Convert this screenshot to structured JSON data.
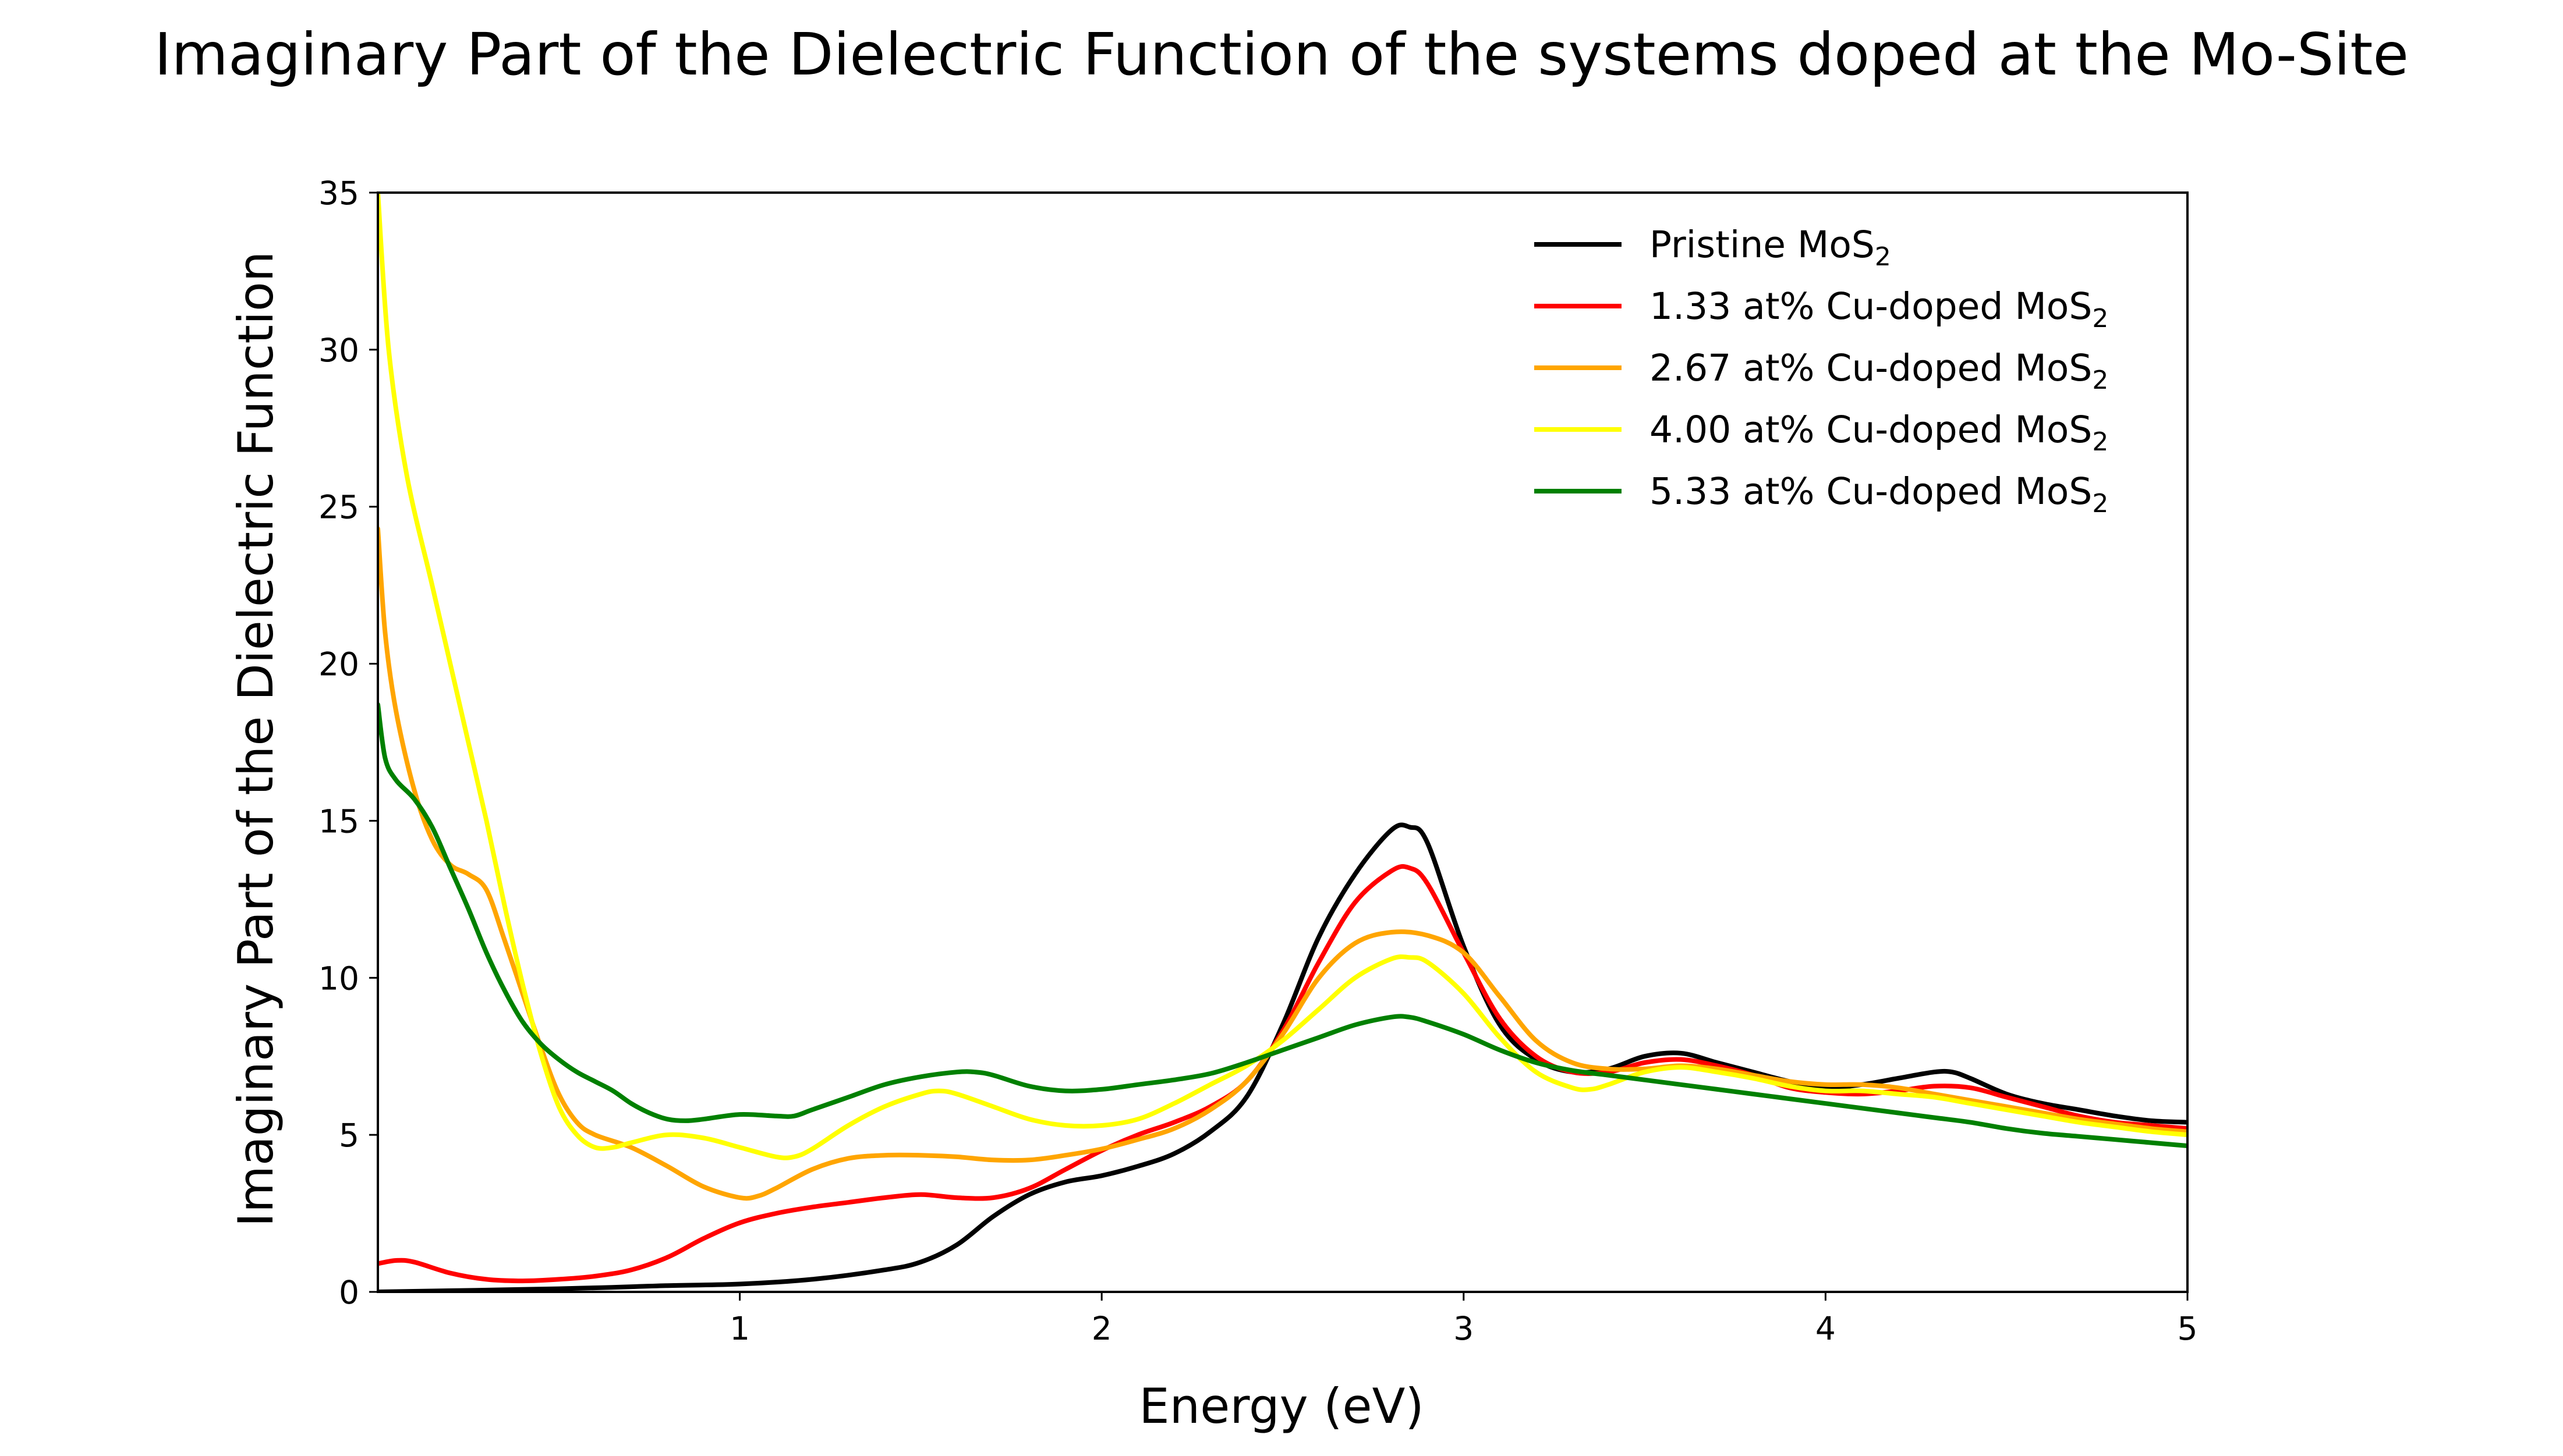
{
  "chart_data": {
    "type": "line",
    "title": "Imaginary Part of the Dielectric Function of the systems doped at the Mo-Site",
    "xlabel": "Energy (eV)",
    "ylabel": "Imaginary Part of the Dielectric Function",
    "xlim": [
      0,
      5
    ],
    "ylim": [
      0,
      35
    ],
    "xticks": [
      1,
      2,
      3,
      4,
      5
    ],
    "yticks": [
      0,
      5,
      10,
      15,
      20,
      25,
      30,
      35
    ],
    "grid": false,
    "legend_position": "top-right",
    "series": [
      {
        "name": "Pristine MoS",
        "name_subscript": "2",
        "color": "#000000",
        "points": [
          [
            0.0,
            0.0
          ],
          [
            0.5,
            0.1
          ],
          [
            0.8,
            0.2
          ],
          [
            1.0,
            0.25
          ],
          [
            1.2,
            0.4
          ],
          [
            1.4,
            0.7
          ],
          [
            1.5,
            0.95
          ],
          [
            1.6,
            1.5
          ],
          [
            1.7,
            2.4
          ],
          [
            1.8,
            3.1
          ],
          [
            1.9,
            3.5
          ],
          [
            2.0,
            3.7
          ],
          [
            2.1,
            4.0
          ],
          [
            2.2,
            4.4
          ],
          [
            2.3,
            5.1
          ],
          [
            2.4,
            6.2
          ],
          [
            2.5,
            8.5
          ],
          [
            2.6,
            11.3
          ],
          [
            2.7,
            13.3
          ],
          [
            2.8,
            14.7
          ],
          [
            2.85,
            14.8
          ],
          [
            2.9,
            14.3
          ],
          [
            3.0,
            11.0
          ],
          [
            3.1,
            8.5
          ],
          [
            3.2,
            7.4
          ],
          [
            3.3,
            7.0
          ],
          [
            3.4,
            7.1
          ],
          [
            3.5,
            7.5
          ],
          [
            3.6,
            7.6
          ],
          [
            3.7,
            7.3
          ],
          [
            3.8,
            7.0
          ],
          [
            3.9,
            6.7
          ],
          [
            4.0,
            6.5
          ],
          [
            4.1,
            6.6
          ],
          [
            4.2,
            6.8
          ],
          [
            4.3,
            7.0
          ],
          [
            4.35,
            7.0
          ],
          [
            4.4,
            6.8
          ],
          [
            4.5,
            6.3
          ],
          [
            4.6,
            6.0
          ],
          [
            4.7,
            5.8
          ],
          [
            4.8,
            5.6
          ],
          [
            4.9,
            5.45
          ],
          [
            5.0,
            5.4
          ]
        ]
      },
      {
        "name": "1.33 at% Cu-doped MoS",
        "name_subscript": "2",
        "color": "#ff0000",
        "points": [
          [
            0.0,
            0.9
          ],
          [
            0.05,
            1.0
          ],
          [
            0.1,
            0.95
          ],
          [
            0.2,
            0.6
          ],
          [
            0.3,
            0.4
          ],
          [
            0.4,
            0.35
          ],
          [
            0.5,
            0.4
          ],
          [
            0.6,
            0.5
          ],
          [
            0.7,
            0.7
          ],
          [
            0.8,
            1.1
          ],
          [
            0.9,
            1.7
          ],
          [
            1.0,
            2.2
          ],
          [
            1.1,
            2.5
          ],
          [
            1.2,
            2.7
          ],
          [
            1.3,
            2.85
          ],
          [
            1.4,
            3.0
          ],
          [
            1.5,
            3.1
          ],
          [
            1.6,
            3.0
          ],
          [
            1.7,
            3.0
          ],
          [
            1.8,
            3.3
          ],
          [
            1.9,
            3.9
          ],
          [
            2.0,
            4.5
          ],
          [
            2.1,
            5.0
          ],
          [
            2.2,
            5.4
          ],
          [
            2.3,
            5.9
          ],
          [
            2.4,
            6.7
          ],
          [
            2.5,
            8.3
          ],
          [
            2.6,
            10.5
          ],
          [
            2.7,
            12.4
          ],
          [
            2.8,
            13.4
          ],
          [
            2.85,
            13.5
          ],
          [
            2.9,
            13.0
          ],
          [
            3.0,
            10.8
          ],
          [
            3.1,
            8.7
          ],
          [
            3.2,
            7.5
          ],
          [
            3.3,
            7.0
          ],
          [
            3.4,
            7.0
          ],
          [
            3.5,
            7.3
          ],
          [
            3.6,
            7.4
          ],
          [
            3.7,
            7.2
          ],
          [
            3.8,
            6.9
          ],
          [
            3.9,
            6.5
          ],
          [
            4.0,
            6.35
          ],
          [
            4.1,
            6.3
          ],
          [
            4.2,
            6.4
          ],
          [
            4.3,
            6.55
          ],
          [
            4.4,
            6.5
          ],
          [
            4.5,
            6.2
          ],
          [
            4.6,
            5.9
          ],
          [
            4.7,
            5.6
          ],
          [
            4.8,
            5.4
          ],
          [
            4.9,
            5.3
          ],
          [
            5.0,
            5.2
          ]
        ]
      },
      {
        "name": "2.67 at% Cu-doped MoS",
        "name_subscript": "2",
        "color": "#ffa500",
        "points": [
          [
            0.0,
            24.3
          ],
          [
            0.02,
            21.0
          ],
          [
            0.05,
            18.5
          ],
          [
            0.1,
            16.0
          ],
          [
            0.15,
            14.4
          ],
          [
            0.2,
            13.6
          ],
          [
            0.25,
            13.3
          ],
          [
            0.3,
            12.8
          ],
          [
            0.35,
            11.2
          ],
          [
            0.4,
            9.5
          ],
          [
            0.45,
            7.8
          ],
          [
            0.5,
            6.3
          ],
          [
            0.55,
            5.4
          ],
          [
            0.6,
            5.0
          ],
          [
            0.7,
            4.6
          ],
          [
            0.8,
            4.0
          ],
          [
            0.9,
            3.35
          ],
          [
            1.0,
            3.0
          ],
          [
            1.05,
            3.05
          ],
          [
            1.1,
            3.3
          ],
          [
            1.2,
            3.9
          ],
          [
            1.3,
            4.25
          ],
          [
            1.4,
            4.35
          ],
          [
            1.5,
            4.35
          ],
          [
            1.6,
            4.3
          ],
          [
            1.7,
            4.2
          ],
          [
            1.8,
            4.2
          ],
          [
            1.9,
            4.35
          ],
          [
            2.0,
            4.55
          ],
          [
            2.1,
            4.85
          ],
          [
            2.2,
            5.2
          ],
          [
            2.3,
            5.8
          ],
          [
            2.4,
            6.7
          ],
          [
            2.5,
            8.2
          ],
          [
            2.6,
            10.0
          ],
          [
            2.7,
            11.1
          ],
          [
            2.8,
            11.45
          ],
          [
            2.9,
            11.35
          ],
          [
            3.0,
            10.8
          ],
          [
            3.1,
            9.4
          ],
          [
            3.2,
            8.0
          ],
          [
            3.3,
            7.3
          ],
          [
            3.4,
            7.1
          ],
          [
            3.5,
            7.1
          ],
          [
            3.6,
            7.2
          ],
          [
            3.7,
            7.1
          ],
          [
            3.8,
            6.9
          ],
          [
            3.9,
            6.7
          ],
          [
            4.0,
            6.6
          ],
          [
            4.1,
            6.6
          ],
          [
            4.2,
            6.5
          ],
          [
            4.3,
            6.3
          ],
          [
            4.4,
            6.1
          ],
          [
            4.5,
            5.9
          ],
          [
            4.6,
            5.7
          ],
          [
            4.7,
            5.5
          ],
          [
            4.8,
            5.35
          ],
          [
            4.9,
            5.2
          ],
          [
            5.0,
            5.1
          ]
        ]
      },
      {
        "name": "4.00 at% Cu-doped MoS",
        "name_subscript": "2",
        "color": "#ffff00",
        "points": [
          [
            0.0,
            35.0
          ],
          [
            0.03,
            30.0
          ],
          [
            0.08,
            26.0
          ],
          [
            0.15,
            22.5
          ],
          [
            0.2,
            20.0
          ],
          [
            0.25,
            17.5
          ],
          [
            0.3,
            15.0
          ],
          [
            0.35,
            12.3
          ],
          [
            0.4,
            9.8
          ],
          [
            0.45,
            7.6
          ],
          [
            0.5,
            5.9
          ],
          [
            0.55,
            5.0
          ],
          [
            0.6,
            4.6
          ],
          [
            0.65,
            4.6
          ],
          [
            0.7,
            4.75
          ],
          [
            0.8,
            5.0
          ],
          [
            0.9,
            4.9
          ],
          [
            1.0,
            4.6
          ],
          [
            1.1,
            4.3
          ],
          [
            1.15,
            4.3
          ],
          [
            1.2,
            4.55
          ],
          [
            1.3,
            5.3
          ],
          [
            1.4,
            5.9
          ],
          [
            1.5,
            6.3
          ],
          [
            1.55,
            6.4
          ],
          [
            1.6,
            6.3
          ],
          [
            1.7,
            5.9
          ],
          [
            1.8,
            5.5
          ],
          [
            1.9,
            5.3
          ],
          [
            2.0,
            5.3
          ],
          [
            2.1,
            5.5
          ],
          [
            2.2,
            6.0
          ],
          [
            2.3,
            6.6
          ],
          [
            2.4,
            7.2
          ],
          [
            2.5,
            8.0
          ],
          [
            2.6,
            9.0
          ],
          [
            2.7,
            10.0
          ],
          [
            2.8,
            10.6
          ],
          [
            2.85,
            10.65
          ],
          [
            2.9,
            10.5
          ],
          [
            3.0,
            9.5
          ],
          [
            3.1,
            8.1
          ],
          [
            3.2,
            7.0
          ],
          [
            3.3,
            6.5
          ],
          [
            3.35,
            6.45
          ],
          [
            3.4,
            6.6
          ],
          [
            3.5,
            7.0
          ],
          [
            3.6,
            7.15
          ],
          [
            3.7,
            7.0
          ],
          [
            3.8,
            6.8
          ],
          [
            3.9,
            6.55
          ],
          [
            4.0,
            6.4
          ],
          [
            4.1,
            6.4
          ],
          [
            4.2,
            6.3
          ],
          [
            4.3,
            6.2
          ],
          [
            4.4,
            6.0
          ],
          [
            4.5,
            5.8
          ],
          [
            4.6,
            5.6
          ],
          [
            4.7,
            5.4
          ],
          [
            4.8,
            5.25
          ],
          [
            4.9,
            5.1
          ],
          [
            5.0,
            5.0
          ]
        ]
      },
      {
        "name": "5.33 at% Cu-doped MoS",
        "name_subscript": "2",
        "color": "#008000",
        "points": [
          [
            0.0,
            18.7
          ],
          [
            0.02,
            17.0
          ],
          [
            0.05,
            16.3
          ],
          [
            0.1,
            15.7
          ],
          [
            0.15,
            14.8
          ],
          [
            0.2,
            13.5
          ],
          [
            0.25,
            12.2
          ],
          [
            0.3,
            10.8
          ],
          [
            0.35,
            9.6
          ],
          [
            0.4,
            8.6
          ],
          [
            0.45,
            7.9
          ],
          [
            0.5,
            7.4
          ],
          [
            0.55,
            7.0
          ],
          [
            0.6,
            6.7
          ],
          [
            0.65,
            6.4
          ],
          [
            0.7,
            6.0
          ],
          [
            0.75,
            5.7
          ],
          [
            0.8,
            5.5
          ],
          [
            0.85,
            5.45
          ],
          [
            0.9,
            5.5
          ],
          [
            1.0,
            5.65
          ],
          [
            1.1,
            5.6
          ],
          [
            1.15,
            5.6
          ],
          [
            1.2,
            5.8
          ],
          [
            1.3,
            6.2
          ],
          [
            1.4,
            6.6
          ],
          [
            1.5,
            6.85
          ],
          [
            1.6,
            7.0
          ],
          [
            1.65,
            7.0
          ],
          [
            1.7,
            6.9
          ],
          [
            1.8,
            6.55
          ],
          [
            1.9,
            6.4
          ],
          [
            2.0,
            6.45
          ],
          [
            2.1,
            6.6
          ],
          [
            2.2,
            6.75
          ],
          [
            2.3,
            6.95
          ],
          [
            2.4,
            7.3
          ],
          [
            2.5,
            7.7
          ],
          [
            2.6,
            8.1
          ],
          [
            2.7,
            8.5
          ],
          [
            2.8,
            8.75
          ],
          [
            2.85,
            8.75
          ],
          [
            2.9,
            8.6
          ],
          [
            3.0,
            8.2
          ],
          [
            3.1,
            7.7
          ],
          [
            3.2,
            7.3
          ],
          [
            3.3,
            7.05
          ],
          [
            3.4,
            6.9
          ],
          [
            3.5,
            6.75
          ],
          [
            3.6,
            6.6
          ],
          [
            3.7,
            6.45
          ],
          [
            3.8,
            6.3
          ],
          [
            3.9,
            6.15
          ],
          [
            4.0,
            6.0
          ],
          [
            4.1,
            5.85
          ],
          [
            4.2,
            5.7
          ],
          [
            4.3,
            5.55
          ],
          [
            4.4,
            5.4
          ],
          [
            4.5,
            5.2
          ],
          [
            4.6,
            5.05
          ],
          [
            4.7,
            4.95
          ],
          [
            4.8,
            4.85
          ],
          [
            4.9,
            4.75
          ],
          [
            5.0,
            4.65
          ]
        ]
      }
    ]
  }
}
